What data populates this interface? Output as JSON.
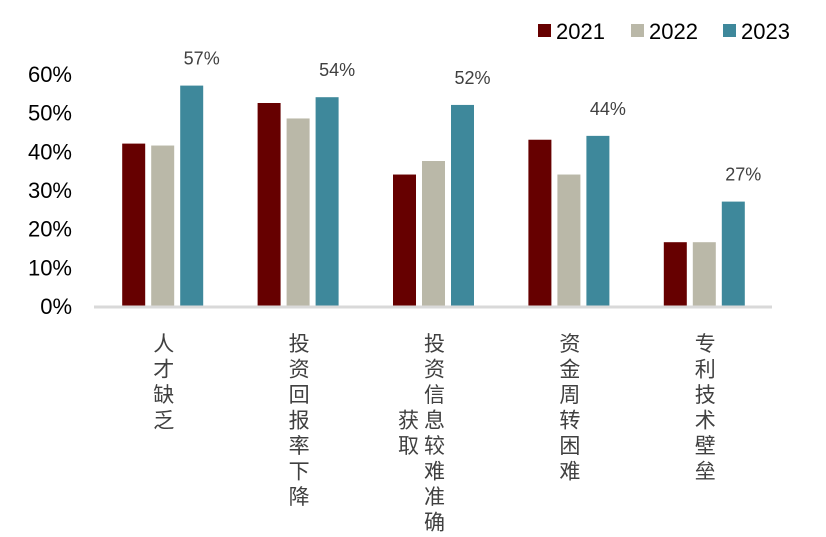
{
  "chart_data": {
    "type": "bar",
    "title": "",
    "xlabel": "",
    "ylabel": "",
    "ylim": [
      0,
      60
    ],
    "yticks": [
      "0%",
      "10%",
      "20%",
      "30%",
      "40%",
      "50%",
      "60%"
    ],
    "grid": false,
    "legend_position": "top-right",
    "categories": [
      {
        "lines": [
          "人才缺乏"
        ]
      },
      {
        "lines": [
          "投资回报率下降"
        ]
      },
      {
        "lines": [
          "投资信息较难准确",
          "获取"
        ]
      },
      {
        "lines": [
          "资金周转困难"
        ]
      },
      {
        "lines": [
          "专利技术壁垒"
        ]
      }
    ],
    "category_names": [
      "人才缺乏",
      "投资回报率下降",
      "投资信息较难准确获取",
      "资金周转困难",
      "专利技术壁垒"
    ],
    "series": [
      {
        "name": "2021",
        "color": "#660000",
        "values": [
          42,
          52.5,
          34,
          43,
          16.5
        ]
      },
      {
        "name": "2022",
        "color": "#BAB8A8",
        "values": [
          41.5,
          48.5,
          37.5,
          34,
          16.5
        ]
      },
      {
        "name": "2023",
        "color": "#3E889B",
        "values": [
          57,
          54,
          52,
          44,
          27
        ]
      }
    ],
    "data_labels": {
      "series": "2023",
      "labels": [
        "57%",
        "54%",
        "52%",
        "44%",
        "27%"
      ]
    },
    "axis_color": "#D9D9D9"
  }
}
